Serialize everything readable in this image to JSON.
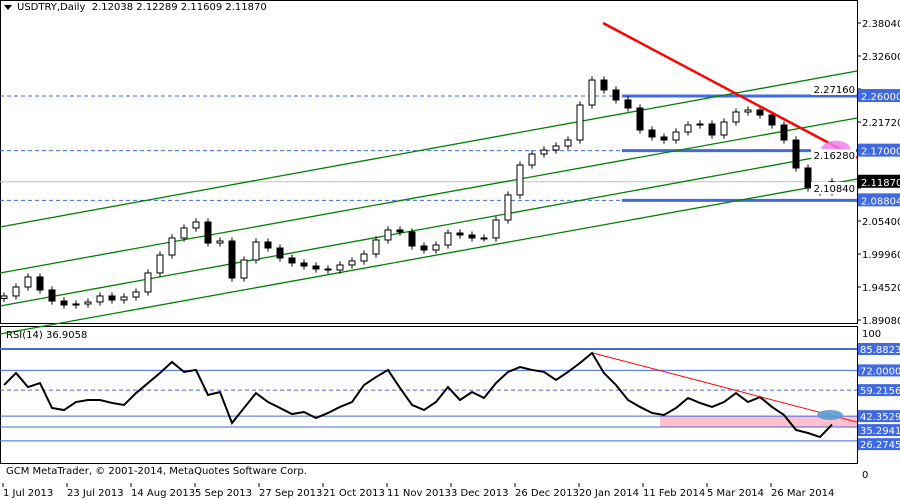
{
  "header": {
    "symbol": "USDTRY,Daily",
    "open": "2.12038",
    "high": "2.12289",
    "low": "2.11609",
    "close": "2.11870"
  },
  "rsi_header": {
    "label": "RSI(14)",
    "value": "36.9058"
  },
  "copyright": "GCM MetaTrader, © 2001-2014, MetaQuotes Software Corp.",
  "colors": {
    "bull": "#ffffff",
    "bear": "#000000",
    "channel": "#008000",
    "trendline": "#ff0000",
    "level": "#4169e1",
    "highlight_pink": "#ee82ee",
    "rsi_zone": "#ffc0cb",
    "rsi_marker": "#5b9bd5"
  },
  "chart_data": [
    {
      "type": "candlestick",
      "title": "USDTRY,Daily",
      "x_tick_labels": [
        "1 Jul 2013",
        "23 Jul 2013",
        "14 Aug 2013",
        "5 Sep 2013",
        "27 Sep 2013",
        "21 Oct 2013",
        "11 Nov 2013",
        "3 Dec 2013",
        "26 Dec 2013",
        "20 Jan 2014",
        "11 Feb 2014",
        "5 Mar 2014",
        "26 Mar 2014"
      ],
      "y_tick_labels": [
        "2.38040",
        "2.32600",
        "2.27160",
        "2.21720",
        "2.16280",
        "2.10840",
        "2.05400",
        "1.99960",
        "1.94520",
        "1.89080"
      ],
      "ylim": [
        1.8908,
        2.3804
      ],
      "closes": [
        1.9304,
        1.9452,
        1.9617,
        1.9403,
        1.9221,
        1.9155,
        1.9172,
        1.9205,
        1.9304,
        1.9238,
        1.9287,
        1.937,
        1.9683,
        1.9979,
        2.026,
        2.0425,
        2.0523,
        2.0177,
        2.021,
        1.96,
        1.9897,
        2.0194,
        2.0095,
        1.993,
        1.9848,
        1.9798,
        1.9749,
        1.9732,
        1.9815,
        1.9881,
        1.9996,
        2.0227,
        2.0392,
        2.0359,
        2.0128,
        2.0062,
        2.0144,
        2.0342,
        2.0309,
        2.026,
        2.026,
        2.0556,
        2.0969,
        2.1463,
        2.1644,
        2.171,
        2.1776,
        2.1875,
        2.2452,
        2.2864,
        2.27,
        2.2535,
        2.2403,
        2.204,
        2.1925,
        2.1875,
        2.2007,
        2.2123,
        2.2139,
        2.1958,
        2.2172,
        2.2337,
        2.237,
        2.2287,
        2.2123,
        2.1875,
        2.1414,
        2.1084,
        2.1018,
        2.1187
      ],
      "levels": [
        {
          "price": 2.26,
          "label": "2.26000"
        },
        {
          "price": 2.17,
          "label": "2.17000"
        },
        {
          "price": 2.08804,
          "label": "2.08804"
        }
      ],
      "current_price": {
        "price": 2.1187,
        "label": "2.11870"
      },
      "channel_lines": [
        [
          2.0441,
          2.3013
        ],
        [
          1.9683,
          2.2238
        ],
        [
          1.9139,
          2.171
        ],
        [
          1.8677,
          2.1232
        ]
      ],
      "trendline": {
        "from": 2.3804,
        "to": 2.158
      }
    },
    {
      "type": "line",
      "title": "RSI(14)",
      "y_tick_labels": [
        "100",
        "0"
      ],
      "levels": [
        {
          "value": 85.88235,
          "label": "85.88235",
          "style": "solid"
        },
        {
          "value": 72.0,
          "label": "72.00000",
          "style": "solid"
        },
        {
          "value": 59.21569,
          "label": "59.21569",
          "style": "dashed"
        },
        {
          "value": 42.35294,
          "label": "42.35294",
          "style": "solid"
        },
        {
          "value": 35.29412,
          "label": "35.29412",
          "style": "solid"
        },
        {
          "value": 26.27451,
          "label": "26.27451",
          "style": "solid"
        }
      ],
      "values": [
        62.5,
        70.3,
        61.2,
        63.8,
        47.6,
        46.3,
        51.5,
        52.8,
        52.8,
        50.9,
        49.6,
        57.3,
        63.8,
        70.3,
        77.5,
        71,
        72.3,
        56.1,
        58,
        37.9,
        47.6,
        57.3,
        51.5,
        47.6,
        43.7,
        45,
        41.1,
        44.4,
        48.3,
        51.5,
        62.5,
        67.7,
        72.3,
        60.6,
        49.6,
        46.3,
        51.5,
        61.2,
        52.8,
        58,
        54.1,
        63.8,
        71,
        74.2,
        72.3,
        71,
        65.8,
        71,
        76.8,
        83.3,
        70.3,
        62.5,
        52.8,
        48.3,
        44.4,
        43.1,
        47.6,
        54.1,
        50.9,
        48.3,
        51.5,
        57.3,
        51.5,
        54.7,
        48.3,
        43.1,
        33.4,
        31.4,
        28.8,
        36.9058
      ],
      "trendline": {
        "from": 83.3,
        "to": 38.5
      }
    }
  ]
}
